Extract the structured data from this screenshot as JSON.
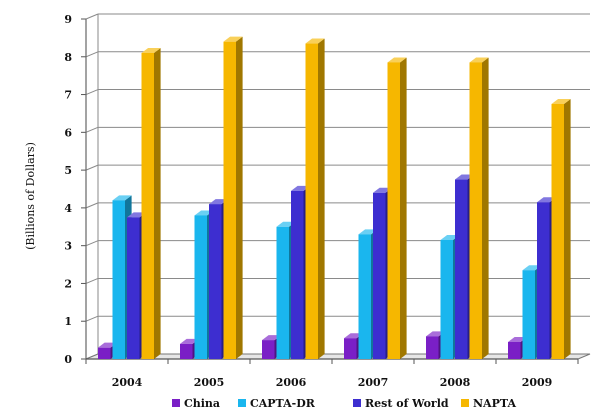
{
  "chart_data": {
    "type": "bar",
    "title": "",
    "xlabel": "",
    "ylabel": "(Billions of Dollars)",
    "ylim": [
      0,
      9
    ],
    "yticks": [
      "0",
      "1",
      "2",
      "3",
      "4",
      "5",
      "6",
      "7",
      "8",
      "9"
    ],
    "categories": [
      "2004",
      "2005",
      "2006",
      "2007",
      "2008",
      "2009"
    ],
    "series": [
      {
        "name": "China",
        "color": "#7a1fc6",
        "values": [
          0.3,
          0.4,
          0.5,
          0.55,
          0.6,
          0.45
        ]
      },
      {
        "name": "CAPTA-DR",
        "color": "#1ab6ee",
        "values": [
          4.2,
          3.8,
          3.5,
          3.3,
          3.15,
          2.35
        ]
      },
      {
        "name": "Rest of World",
        "color": "#3d2ed0",
        "values": [
          3.75,
          4.1,
          4.45,
          4.4,
          4.75,
          4.15
        ]
      },
      {
        "name": "NAPTA",
        "color": "#f6b700",
        "values": [
          8.1,
          8.4,
          8.35,
          7.85,
          7.85,
          6.75
        ]
      }
    ],
    "grid": true,
    "legend": "bottom",
    "style": "3d-column"
  }
}
